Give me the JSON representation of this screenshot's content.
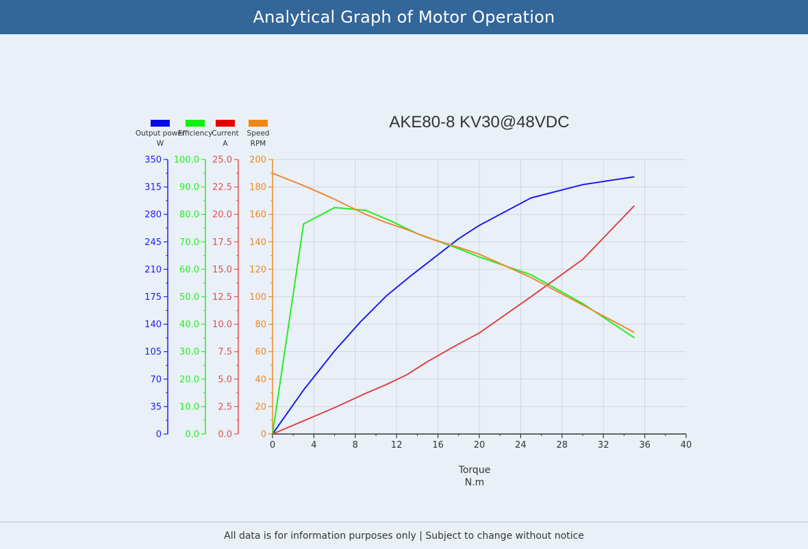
{
  "page": {
    "header_title": "Analytical Graph of Motor Operation",
    "footer_note": "All data is for information purposes only | Subject to change without notice"
  },
  "chart_data": {
    "type": "line",
    "title": "AKE80-8 KV30@48VDC",
    "xlabel": "Torque",
    "xunit": "N.m",
    "xlim": [
      0,
      40
    ],
    "xticks": [
      0,
      4,
      8,
      12,
      16,
      20,
      24,
      28,
      32,
      36,
      40
    ],
    "grid": true,
    "legend_position": "top-left",
    "axes": [
      {
        "id": "power",
        "label": "Output power",
        "unit": "W",
        "color": "#1a1aff",
        "ylim": [
          0,
          350
        ],
        "ticks": [
          "0",
          "35",
          "70",
          "105",
          "140",
          "175",
          "210",
          "245",
          "280",
          "315",
          "350"
        ]
      },
      {
        "id": "efficiency",
        "label": "Efficiency",
        "unit": "",
        "color": "#22ee22",
        "ylim": [
          0,
          100
        ],
        "ticks": [
          "0.0",
          "10.0",
          "20.0",
          "30.0",
          "40.0",
          "50.0",
          "60.0",
          "70.0",
          "80.0",
          "90.0",
          "100.0"
        ]
      },
      {
        "id": "current",
        "label": "Current",
        "unit": "A",
        "color": "#e05050",
        "ylim": [
          0,
          25
        ],
        "ticks": [
          "0.0",
          "2.5",
          "5.0",
          "7.5",
          "10.0",
          "12.5",
          "15.0",
          "17.5",
          "20.0",
          "22.5",
          "25.0"
        ]
      },
      {
        "id": "speed",
        "label": "Speed",
        "unit": "RPM",
        "color": "#ee8822",
        "ylim": [
          0,
          200
        ],
        "ticks": [
          "0",
          "20",
          "40",
          "60",
          "80",
          "100",
          "120",
          "140",
          "160",
          "180",
          "200"
        ]
      }
    ],
    "legend": [
      {
        "axis": "power",
        "label": "Output power",
        "unit": "W",
        "color": "#0a0ae6"
      },
      {
        "axis": "efficiency",
        "label": "Efficiency",
        "unit": "",
        "color": "#11ee11"
      },
      {
        "axis": "current",
        "label": "Current",
        "unit": "A",
        "color": "#e60000"
      },
      {
        "axis": "speed",
        "label": "Speed",
        "unit": "RPM",
        "color": "#ee8811"
      }
    ],
    "series": [
      {
        "axis": "power",
        "color": "#1a1aee",
        "points": [
          [
            0,
            0
          ],
          [
            3,
            56
          ],
          [
            6,
            106
          ],
          [
            8.5,
            143
          ],
          [
            11,
            176
          ],
          [
            13.5,
            203
          ],
          [
            18,
            249
          ],
          [
            20,
            266
          ],
          [
            25,
            301
          ],
          [
            30,
            318
          ],
          [
            35,
            328
          ]
        ]
      },
      {
        "axis": "efficiency",
        "color": "#22ee22",
        "points": [
          [
            0,
            0
          ],
          [
            3,
            76.5
          ],
          [
            6,
            82.5
          ],
          [
            9,
            81.5
          ],
          [
            11.5,
            77.5
          ],
          [
            14,
            73
          ],
          [
            18,
            67.5
          ],
          [
            20,
            64.5
          ],
          [
            25,
            58
          ],
          [
            30,
            47.5
          ],
          [
            35,
            35
          ]
        ]
      },
      {
        "axis": "current",
        "color": "#dd4444",
        "points": [
          [
            0,
            0
          ],
          [
            3,
            1.2
          ],
          [
            6,
            2.4
          ],
          [
            9,
            3.7
          ],
          [
            11,
            4.5
          ],
          [
            13,
            5.4
          ],
          [
            15,
            6.6
          ],
          [
            18,
            8.2
          ],
          [
            20,
            9.2
          ],
          [
            25,
            12.5
          ],
          [
            30,
            15.9
          ],
          [
            35,
            20.8
          ]
        ]
      },
      {
        "axis": "speed",
        "color": "#ee8833",
        "points": [
          [
            0,
            190
          ],
          [
            3,
            181
          ],
          [
            6,
            171
          ],
          [
            9,
            160
          ],
          [
            11,
            154
          ],
          [
            13,
            149
          ],
          [
            15,
            143
          ],
          [
            18,
            136
          ],
          [
            20,
            131
          ],
          [
            25,
            114
          ],
          [
            30,
            94
          ],
          [
            35,
            74
          ]
        ]
      }
    ]
  }
}
